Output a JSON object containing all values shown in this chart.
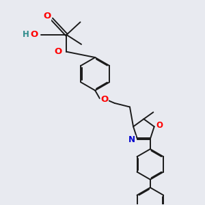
{
  "bg_color": "#e8eaf0",
  "line_color": "#1a1a1a",
  "bond_lw": 1.4,
  "atom_colors": {
    "O": "#ff0000",
    "N": "#0000cc",
    "H": "#2e8b8b",
    "C": "#1a1a1a"
  },
  "font_size": 8.5
}
